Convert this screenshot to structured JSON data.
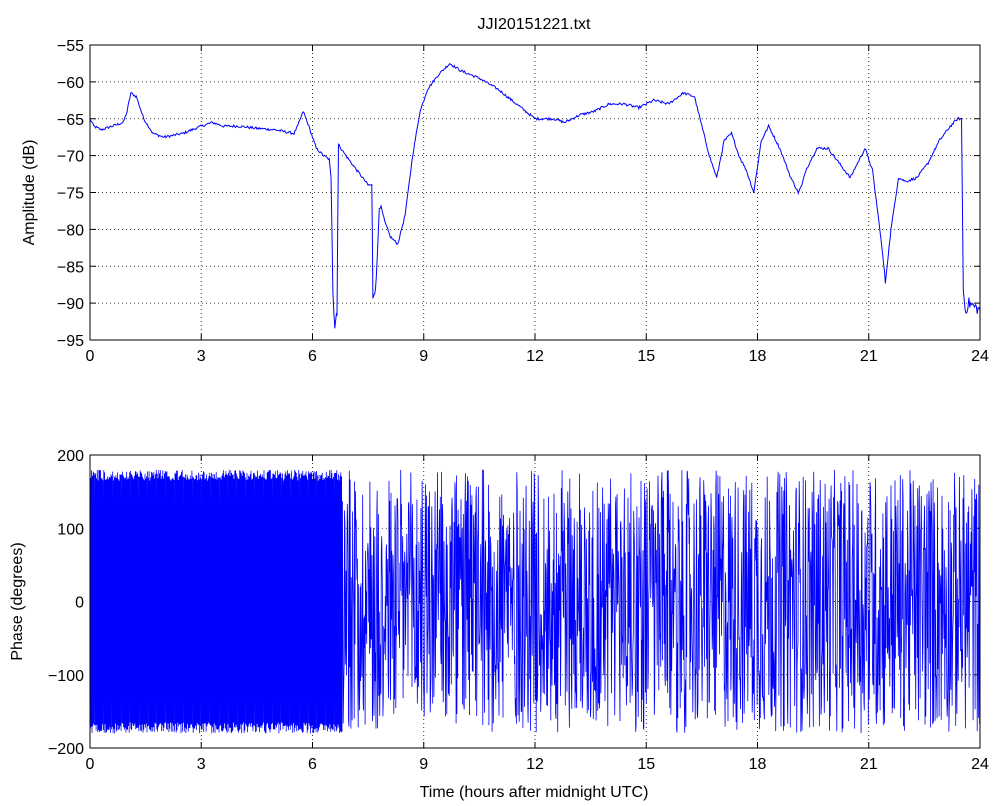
{
  "chart_data": [
    {
      "type": "line",
      "title": "JJI20151221.txt",
      "xlabel": "",
      "ylabel": "Amplitude (dB)",
      "xlim": [
        0,
        24
      ],
      "ylim": [
        -95,
        -55
      ],
      "xticks": [
        0,
        3,
        6,
        9,
        12,
        15,
        18,
        21,
        24
      ],
      "yticks": [
        -95,
        -90,
        -85,
        -80,
        -75,
        -70,
        -65,
        -60,
        -55
      ],
      "ytick_labels": [
        "−95",
        "−90",
        "−85",
        "−80",
        "−75",
        "−70",
        "−65",
        "−60",
        "−55"
      ],
      "grid": "dotted",
      "color": "#0000ff",
      "series": [
        {
          "x": [
            0,
            0.1,
            0.3,
            0.6,
            0.9,
            1.0,
            1.1,
            1.25,
            1.45,
            1.7,
            2.0,
            2.5,
            3.0,
            3.3,
            3.6,
            4.0,
            4.5,
            5.0,
            5.5,
            5.6,
            5.75,
            5.9,
            6.1,
            6.3,
            6.45,
            6.5,
            6.55,
            6.6,
            6.63,
            6.66,
            6.7,
            6.9,
            7.2,
            7.5,
            7.6,
            7.63,
            7.68,
            7.72,
            7.8,
            7.85,
            7.95,
            8.1,
            8.3,
            8.5,
            8.7,
            8.9,
            9.1,
            9.4,
            9.7,
            10.0,
            10.5,
            11.0,
            11.5,
            12.0,
            12.5,
            12.8,
            13.2,
            13.6,
            14.0,
            14.4,
            14.8,
            15.2,
            15.6,
            16.0,
            16.3,
            16.5,
            16.7,
            16.9,
            17.1,
            17.3,
            17.5,
            17.7,
            17.9,
            18.1,
            18.3,
            18.6,
            18.9,
            19.1,
            19.2,
            19.3,
            19.6,
            19.9,
            20.2,
            20.5,
            20.7,
            20.9,
            21.1,
            21.3,
            21.45,
            21.6,
            21.8,
            22.0,
            22.3,
            22.6,
            22.9,
            23.2,
            23.4,
            23.5,
            23.55,
            23.6,
            23.7,
            24.0
          ],
          "y": [
            -65,
            -66,
            -66.5,
            -66,
            -65.5,
            -64,
            -61.5,
            -62,
            -65,
            -67,
            -67.5,
            -67,
            -66,
            -65.5,
            -66,
            -66,
            -66.3,
            -66.5,
            -67,
            -66,
            -64,
            -66,
            -69,
            -70,
            -70.5,
            -73,
            -88,
            -93,
            -92,
            -91,
            -68.5,
            -70,
            -72,
            -74,
            -74,
            -89,
            -88,
            -87,
            -77,
            -77,
            -79,
            -81,
            -82,
            -78,
            -70,
            -64,
            -61,
            -59,
            -57.5,
            -58.5,
            -59.5,
            -61,
            -63,
            -65,
            -65,
            -65.5,
            -64.5,
            -64,
            -63,
            -63,
            -63.5,
            -62.5,
            -63,
            -61.5,
            -62,
            -66,
            -70,
            -73,
            -68,
            -67,
            -70,
            -72,
            -75,
            -68,
            -66,
            -69,
            -73,
            -75,
            -74,
            -72,
            -69,
            -69,
            -71,
            -73,
            -71,
            -69,
            -72,
            -80,
            -87,
            -80,
            -73,
            -73.5,
            -73,
            -71,
            -68,
            -66,
            -65,
            -65,
            -88,
            -91,
            -90,
            -91
          ]
        }
      ]
    },
    {
      "type": "line",
      "title": "",
      "xlabel": "Time (hours after midnight UTC)",
      "ylabel": "Phase (degrees)",
      "xlim": [
        0,
        24
      ],
      "ylim": [
        -200,
        200
      ],
      "xticks": [
        0,
        3,
        6,
        9,
        12,
        15,
        18,
        21,
        24
      ],
      "yticks": [
        -200,
        -100,
        0,
        100,
        200
      ],
      "ytick_labels": [
        "−200",
        "−100",
        "0",
        "100",
        "200"
      ],
      "grid": "dotted",
      "color": "#0000ff",
      "series": [
        {
          "description_of_values": "rapid wrapped phase oscillation between -180 and 180 degrees",
          "x_start": 0,
          "x_end": 24,
          "ymin": -180,
          "ymax": 180
        }
      ]
    }
  ]
}
